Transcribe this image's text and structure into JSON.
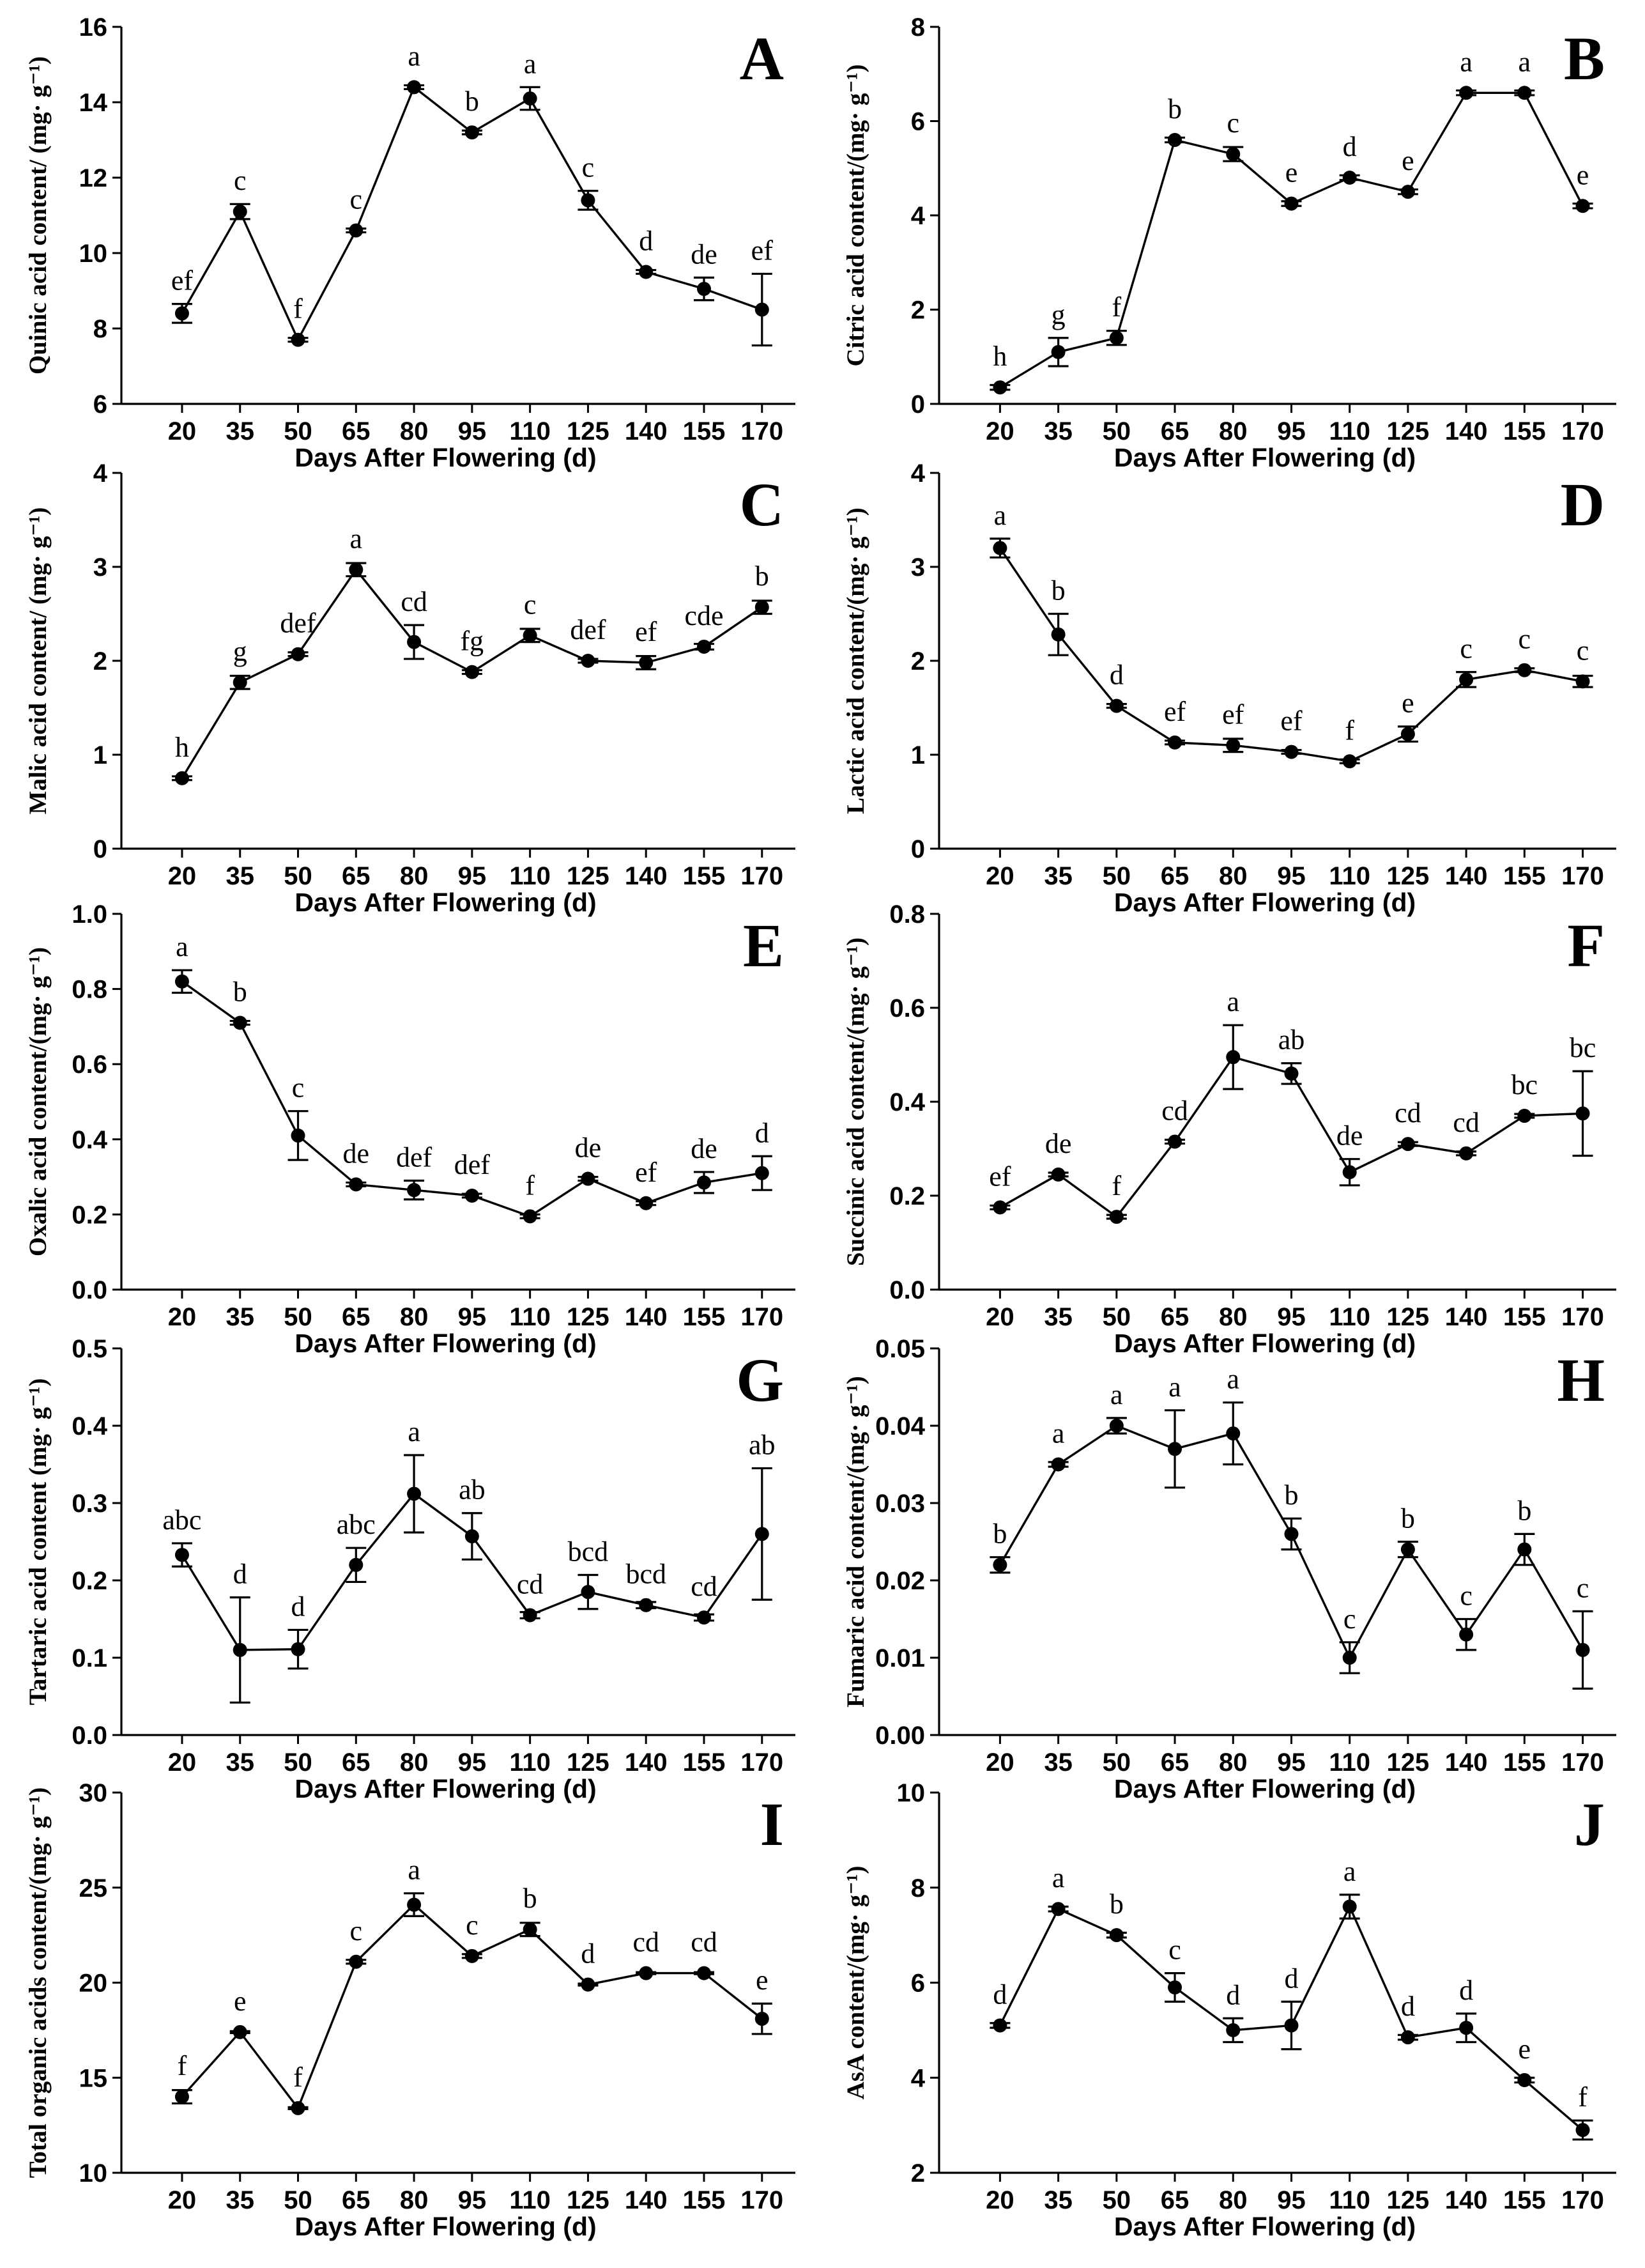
{
  "chart_data": [
    {
      "type": "line",
      "panel": "A",
      "x": [
        20,
        35,
        50,
        65,
        80,
        95,
        110,
        125,
        140,
        155,
        170
      ],
      "values": [
        8.4,
        11.1,
        7.7,
        10.6,
        14.4,
        13.2,
        14.1,
        11.4,
        9.5,
        9.05,
        8.5
      ],
      "errors": [
        0.25,
        0.2,
        0.05,
        0.05,
        0.05,
        0.05,
        0.3,
        0.25,
        0.05,
        0.3,
        0.95
      ],
      "letters": [
        "ef",
        "c",
        "f",
        "c",
        "a",
        "b",
        "a",
        "c",
        "d",
        "de",
        "ef"
      ],
      "ylim": [
        6,
        16
      ],
      "yticks": [
        6,
        8,
        10,
        12,
        14,
        16
      ],
      "xlabel": "Days After Flowering (d)",
      "ylabel": "Quinic acid content/ (mg· g⁻¹)"
    },
    {
      "type": "line",
      "panel": "B",
      "x": [
        20,
        35,
        50,
        65,
        80,
        95,
        110,
        125,
        140,
        155,
        170
      ],
      "values": [
        0.35,
        1.1,
        1.4,
        5.6,
        5.3,
        4.25,
        4.8,
        4.5,
        6.6,
        6.6,
        4.2
      ],
      "errors": [
        0.05,
        0.3,
        0.15,
        0.05,
        0.15,
        0.05,
        0.05,
        0.05,
        0.05,
        0.05,
        0.05
      ],
      "letters": [
        "h",
        "g",
        "f",
        "b",
        "c",
        "e",
        "d",
        "e",
        "a",
        "a",
        "e"
      ],
      "ylim": [
        0,
        8
      ],
      "yticks": [
        0,
        2,
        4,
        6,
        8
      ],
      "xlabel": "Days After Flowering (d)",
      "ylabel": "Citric acid content/(mg· g⁻¹)"
    },
    {
      "type": "line",
      "panel": "C",
      "x": [
        20,
        35,
        50,
        65,
        80,
        95,
        110,
        125,
        140,
        155,
        170
      ],
      "values": [
        0.75,
        1.77,
        2.07,
        2.97,
        2.2,
        1.88,
        2.27,
        2.0,
        1.98,
        2.15,
        2.57
      ],
      "errors": [
        0.02,
        0.07,
        0.02,
        0.07,
        0.18,
        0.02,
        0.07,
        0.02,
        0.07,
        0.03,
        0.07
      ],
      "letters": [
        "h",
        "g",
        "def",
        "a",
        "cd",
        "fg",
        "c",
        "def",
        "ef",
        "cde",
        "b"
      ],
      "ylim": [
        0,
        4
      ],
      "yticks": [
        0,
        1,
        2,
        3,
        4
      ],
      "xlabel": "Days After Flowering (d)",
      "ylabel": "Malic acid content/ (mg· g⁻¹)"
    },
    {
      "type": "line",
      "panel": "D",
      "x": [
        20,
        35,
        50,
        65,
        80,
        95,
        110,
        125,
        140,
        155,
        170
      ],
      "values": [
        3.2,
        2.28,
        1.52,
        1.13,
        1.1,
        1.03,
        0.93,
        1.22,
        1.8,
        1.9,
        1.78
      ],
      "errors": [
        0.1,
        0.22,
        0.02,
        0.02,
        0.07,
        0.02,
        0.02,
        0.08,
        0.08,
        0.02,
        0.06
      ],
      "letters": [
        "a",
        "b",
        "d",
        "ef",
        "ef",
        "ef",
        "f",
        "e",
        "c",
        "c",
        "c"
      ],
      "ylim": [
        0,
        4
      ],
      "yticks": [
        0,
        1,
        2,
        3,
        4
      ],
      "xlabel": "Days After Flowering (d)",
      "ylabel": "Lactic acid content/(mg· g⁻¹)"
    },
    {
      "type": "line",
      "panel": "E",
      "x": [
        20,
        35,
        50,
        65,
        80,
        95,
        110,
        125,
        140,
        155,
        170
      ],
      "values": [
        0.82,
        0.71,
        0.41,
        0.28,
        0.265,
        0.25,
        0.195,
        0.295,
        0.23,
        0.285,
        0.31
      ],
      "errors": [
        0.03,
        0.005,
        0.065,
        0.005,
        0.025,
        0.005,
        0.005,
        0.005,
        0.005,
        0.028,
        0.045
      ],
      "letters": [
        "a",
        "b",
        "c",
        "de",
        "def",
        "def",
        "f",
        "de",
        "ef",
        "de",
        "d"
      ],
      "ylim": [
        0,
        1.0
      ],
      "yticks": [
        0.0,
        0.2,
        0.4,
        0.6,
        0.8,
        1.0
      ],
      "xlabel": "Days After Flowering (d)",
      "ylabel": "Oxalic acid content/(mg· g⁻¹)"
    },
    {
      "type": "line",
      "panel": "F",
      "x": [
        20,
        35,
        50,
        65,
        80,
        95,
        110,
        125,
        140,
        155,
        170
      ],
      "values": [
        0.175,
        0.245,
        0.155,
        0.315,
        0.495,
        0.46,
        0.25,
        0.31,
        0.29,
        0.37,
        0.375
      ],
      "errors": [
        0.004,
        0.004,
        0.004,
        0.004,
        0.068,
        0.022,
        0.028,
        0.004,
        0.004,
        0.004,
        0.09
      ],
      "letters": [
        "ef",
        "de",
        "f",
        "cd",
        "a",
        "ab",
        "de",
        "cd",
        "cd",
        "bc",
        "bc"
      ],
      "ylim": [
        0,
        0.8
      ],
      "yticks": [
        0.0,
        0.2,
        0.4,
        0.6,
        0.8
      ],
      "xlabel": "Days After Flowering (d)",
      "ylabel": "Succinic acid content/(mg· g⁻¹)"
    },
    {
      "type": "line",
      "panel": "G",
      "x": [
        20,
        35,
        50,
        65,
        80,
        95,
        110,
        125,
        140,
        155,
        170
      ],
      "values": [
        0.233,
        0.11,
        0.111,
        0.22,
        0.312,
        0.257,
        0.155,
        0.185,
        0.168,
        0.152,
        0.26
      ],
      "errors": [
        0.015,
        0.068,
        0.025,
        0.022,
        0.05,
        0.03,
        0.004,
        0.022,
        0.004,
        0.004,
        0.085
      ],
      "letters": [
        "abc",
        "d",
        "d",
        "abc",
        "a",
        "ab",
        "cd",
        "bcd",
        "bcd",
        "cd",
        "ab"
      ],
      "ylim": [
        0,
        0.5
      ],
      "yticks": [
        0.0,
        0.1,
        0.2,
        0.3,
        0.4,
        0.5
      ],
      "xlabel": "Days After Flowering (d)",
      "ylabel": "Tartaric acid content  (mg· g⁻¹)"
    },
    {
      "type": "line",
      "panel": "H",
      "x": [
        20,
        35,
        50,
        65,
        80,
        95,
        110,
        125,
        140,
        155,
        170
      ],
      "values": [
        0.022,
        0.035,
        0.04,
        0.037,
        0.039,
        0.026,
        0.01,
        0.024,
        0.013,
        0.024,
        0.011
      ],
      "errors": [
        0.001,
        0.0003,
        0.001,
        0.005,
        0.004,
        0.002,
        0.002,
        0.001,
        0.002,
        0.002,
        0.005
      ],
      "letters": [
        "b",
        "a",
        "a",
        "a",
        "a",
        "b",
        "c",
        "b",
        "c",
        "b",
        "c"
      ],
      "ylim": [
        0,
        0.05
      ],
      "yticks": [
        0.0,
        0.01,
        0.02,
        0.03,
        0.04,
        0.05
      ],
      "ytick_labels": [
        "0.00",
        "0.01",
        "0.02",
        "0.03",
        "0.04",
        "0.05"
      ],
      "xlabel": "Days After Flowering (d)",
      "ylabel": "Fumaric acid content/(mg· g⁻¹)"
    },
    {
      "type": "line",
      "panel": "I",
      "x": [
        20,
        35,
        50,
        65,
        80,
        95,
        110,
        125,
        140,
        155,
        170
      ],
      "values": [
        14.0,
        17.4,
        13.4,
        21.1,
        24.1,
        21.4,
        22.8,
        19.9,
        20.5,
        20.5,
        18.1
      ],
      "errors": [
        0.35,
        0.05,
        0.05,
        0.1,
        0.6,
        0.1,
        0.35,
        0.05,
        0.05,
        0.05,
        0.8
      ],
      "letters": [
        "f",
        "e",
        "f",
        "c",
        "a",
        "c",
        "b",
        "d",
        "cd",
        "cd",
        "e"
      ],
      "ylim": [
        10,
        30
      ],
      "yticks": [
        10,
        15,
        20,
        25,
        30
      ],
      "xlabel": "Days After Flowering (d)",
      "ylabel": "Total  organic acids content/(mg· g⁻¹)"
    },
    {
      "type": "line",
      "panel": "J",
      "x": [
        20,
        35,
        50,
        65,
        80,
        95,
        110,
        125,
        140,
        155,
        170
      ],
      "values": [
        5.1,
        7.55,
        7.0,
        5.9,
        5.0,
        5.1,
        7.6,
        4.85,
        5.05,
        3.95,
        2.9
      ],
      "errors": [
        0.05,
        0.05,
        0.05,
        0.3,
        0.25,
        0.5,
        0.25,
        0.05,
        0.3,
        0.05,
        0.2
      ],
      "letters": [
        "d",
        "a",
        "b",
        "c",
        "d",
        "d",
        "a",
        "d",
        "d",
        "e",
        "f"
      ],
      "ylim": [
        2,
        10
      ],
      "yticks": [
        2,
        4,
        6,
        8,
        10
      ],
      "xlabel": "Days After Flowering (d)",
      "ylabel": "AsA content/(mg· g⁻¹)"
    }
  ]
}
